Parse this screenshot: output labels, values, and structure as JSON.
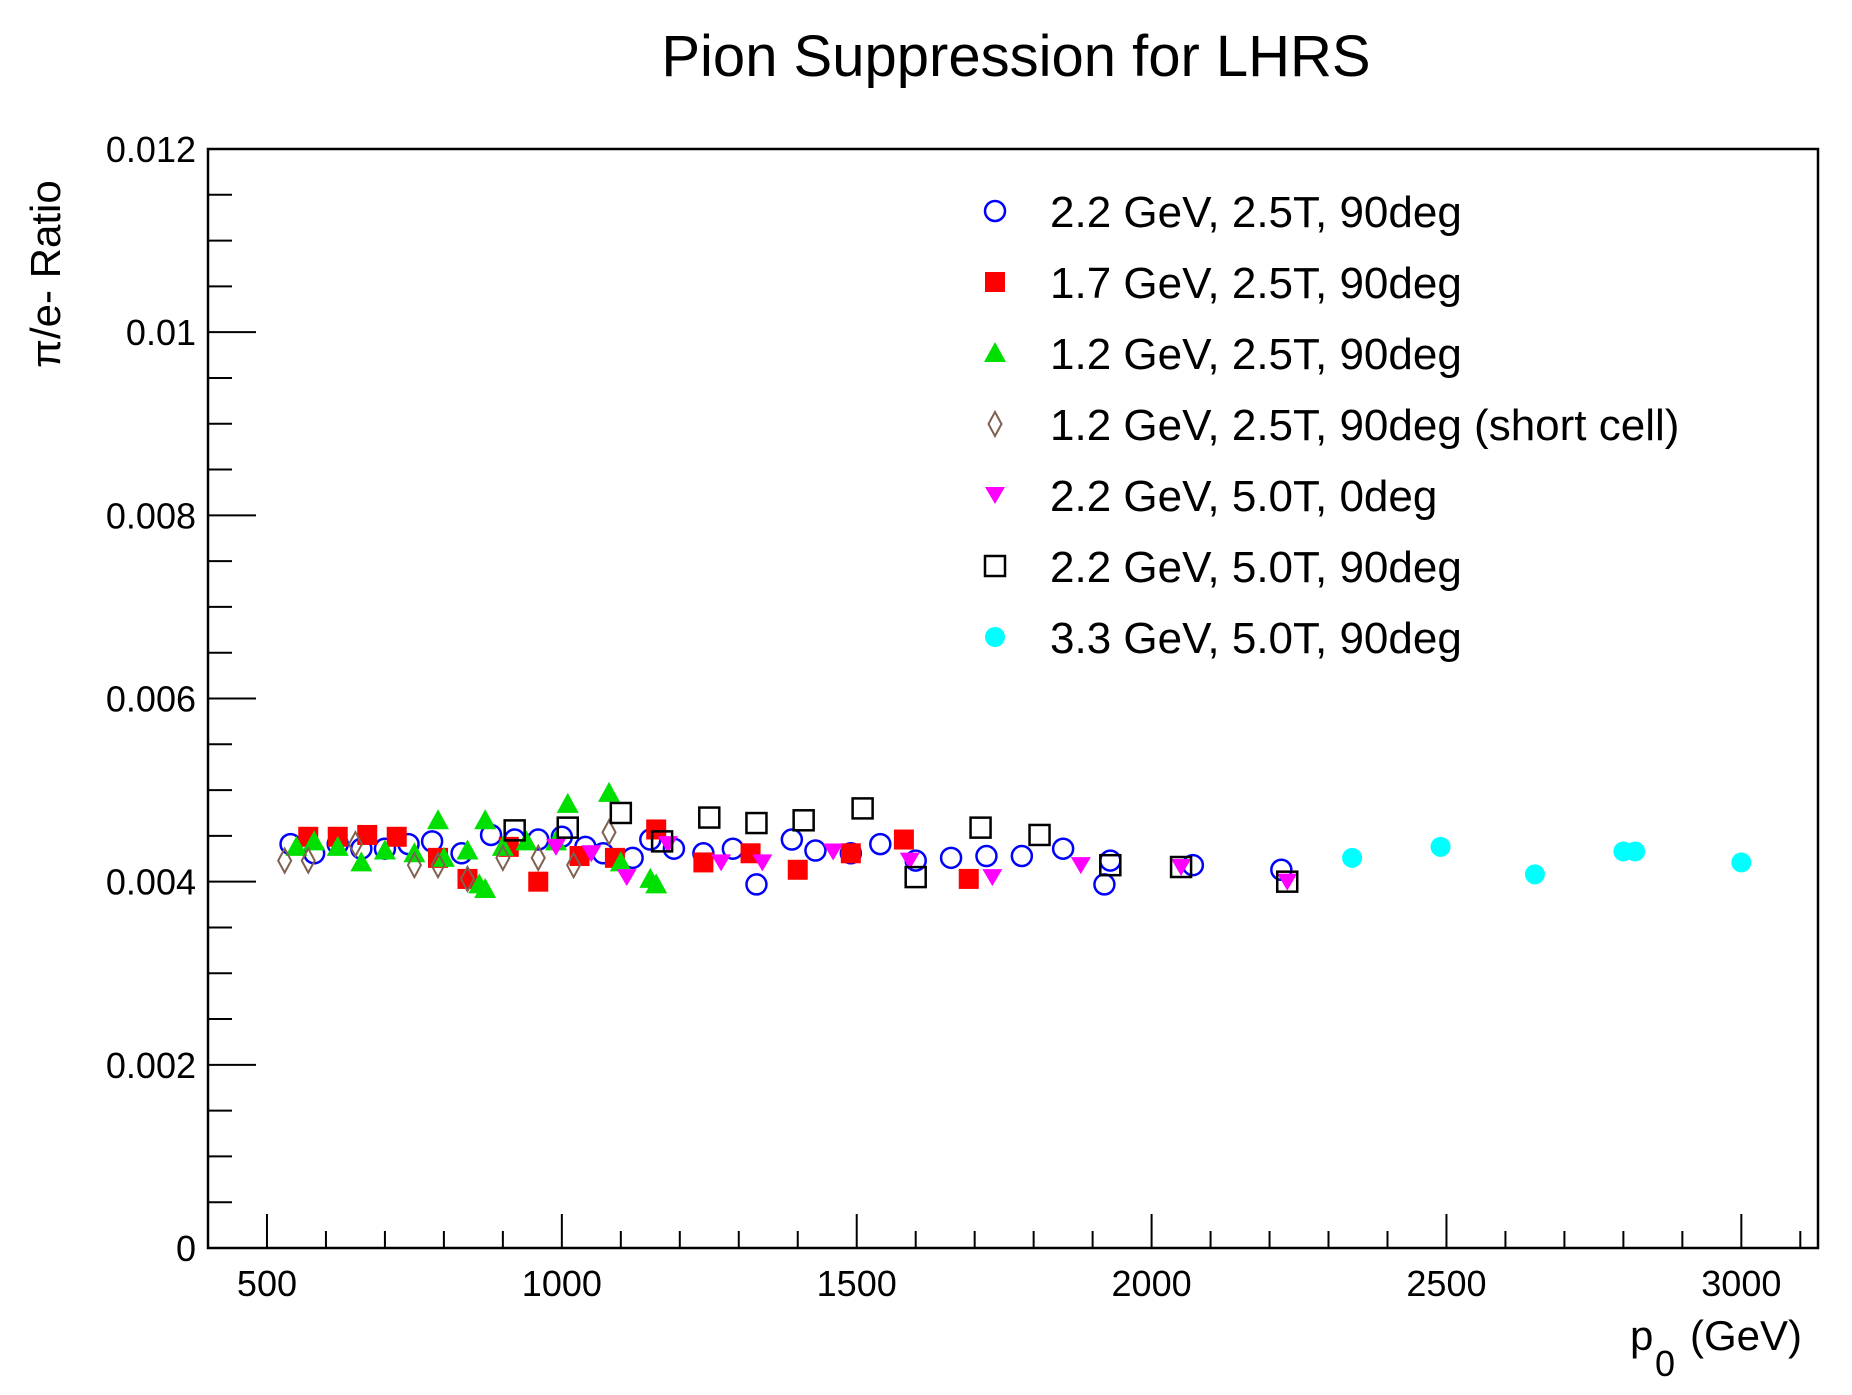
{
  "chart_data": {
    "type": "scatter",
    "title": "Pion Suppression for LHRS",
    "xlabel": "p",
    "xlabel_sub": "0",
    "xlabel_unit": "(GeV)",
    "ylabel": "π/e- Ratio",
    "xlim": [
      400,
      3130
    ],
    "ylim": [
      0,
      0.012
    ],
    "x_ticks": [
      500,
      1000,
      1500,
      2000,
      2500,
      3000
    ],
    "x_tick_labels": [
      "500",
      "1000",
      "1500",
      "2000",
      "2500",
      "3000"
    ],
    "y_ticks": [
      0,
      0.002,
      0.004,
      0.006,
      0.008,
      0.01,
      0.012
    ],
    "y_tick_labels": [
      "0",
      "0.002",
      "0.004",
      "0.006",
      "0.008",
      "0.01",
      "0.012"
    ],
    "grid": false,
    "legend_position": "top-right",
    "series": [
      {
        "name": "2.2 GeV, 2.5T, 90deg",
        "marker": "open-circle",
        "color": "#0000ff",
        "x": [
          540,
          580,
          620,
          660,
          700,
          740,
          780,
          830,
          880,
          920,
          960,
          1000,
          1040,
          1070,
          1120,
          1150,
          1190,
          1240,
          1290,
          1330,
          1390,
          1430,
          1490,
          1540,
          1600,
          1660,
          1720,
          1780,
          1850,
          1920,
          1930,
          2070,
          2220
        ],
        "y": [
          0.00441,
          0.00431,
          0.00441,
          0.00436,
          0.00436,
          0.00441,
          0.00444,
          0.00431,
          0.00451,
          0.00446,
          0.00446,
          0.00449,
          0.00438,
          0.00431,
          0.00426,
          0.00446,
          0.00436,
          0.00431,
          0.00436,
          0.00397,
          0.00446,
          0.00434,
          0.00431,
          0.00441,
          0.00423,
          0.00426,
          0.00428,
          0.00428,
          0.00436,
          0.00397,
          0.00423,
          0.00418,
          0.00413
        ]
      },
      {
        "name": "1.7 GeV, 2.5T, 90deg",
        "marker": "filled-square",
        "color": "#ff0000",
        "x": [
          570,
          620,
          670,
          720,
          790,
          840,
          910,
          960,
          1030,
          1090,
          1160,
          1240,
          1320,
          1400,
          1490,
          1580,
          1690
        ],
        "y": [
          0.00449,
          0.00449,
          0.00451,
          0.00449,
          0.00426,
          0.00403,
          0.00438,
          0.004,
          0.00428,
          0.00426,
          0.00457,
          0.00421,
          0.00431,
          0.00413,
          0.00431,
          0.00446,
          0.00403
        ]
      },
      {
        "name": "1.2 GeV, 2.5T, 90deg",
        "marker": "filled-triangle-up",
        "color": "#00e000",
        "x": [
          550,
          580,
          620,
          660,
          700,
          750,
          790,
          800,
          840,
          860,
          870,
          870,
          900,
          940,
          990,
          1010,
          1080,
          1100,
          1150,
          1160
        ],
        "y": [
          0.00438,
          0.00444,
          0.00438,
          0.00421,
          0.00434,
          0.00431,
          0.00467,
          0.00426,
          0.00434,
          0.00397,
          0.00467,
          0.00392,
          0.00438,
          0.00444,
          0.00444,
          0.00485,
          0.00497,
          0.00421,
          0.00403,
          0.00397
        ]
      },
      {
        "name": "1.2 GeV, 2.5T, 90deg (short cell)",
        "marker": "open-diamond",
        "color": "#806050",
        "x": [
          530,
          570,
          650,
          750,
          790,
          840,
          900,
          960,
          1020,
          1080
        ],
        "y": [
          0.00423,
          0.00423,
          0.00441,
          0.00418,
          0.00418,
          0.00403,
          0.00426,
          0.00426,
          0.00418,
          0.00454
        ]
      },
      {
        "name": "2.2 GeV, 5.0T, 0deg",
        "marker": "filled-triangle-down",
        "color": "#ff00ff",
        "x": [
          990,
          1050,
          1110,
          1180,
          1270,
          1340,
          1460,
          1590,
          1730,
          1880,
          2050,
          2230
        ],
        "y": [
          0.00438,
          0.00431,
          0.00405,
          0.00441,
          0.00421,
          0.00421,
          0.00433,
          0.00423,
          0.00405,
          0.00418,
          0.00416,
          0.004
        ]
      },
      {
        "name": "2.2 GeV, 5.0T, 90deg",
        "marker": "open-square",
        "color": "#000000",
        "x": [
          920,
          1010,
          1100,
          1170,
          1250,
          1330,
          1410,
          1510,
          1600,
          1710,
          1810,
          1930,
          2050,
          2230
        ],
        "y": [
          0.00456,
          0.00459,
          0.00475,
          0.00444,
          0.0047,
          0.00464,
          0.00467,
          0.0048,
          0.00405,
          0.00459,
          0.00451,
          0.00418,
          0.00416,
          0.004
        ]
      },
      {
        "name": "3.3 GeV, 5.0T, 90deg",
        "marker": "filled-circle",
        "color": "#00ffff",
        "x": [
          2340,
          2490,
          2650,
          2800,
          2820,
          3000
        ],
        "y": [
          0.00426,
          0.00438,
          0.00408,
          0.00433,
          0.00433,
          0.00421
        ]
      }
    ]
  }
}
